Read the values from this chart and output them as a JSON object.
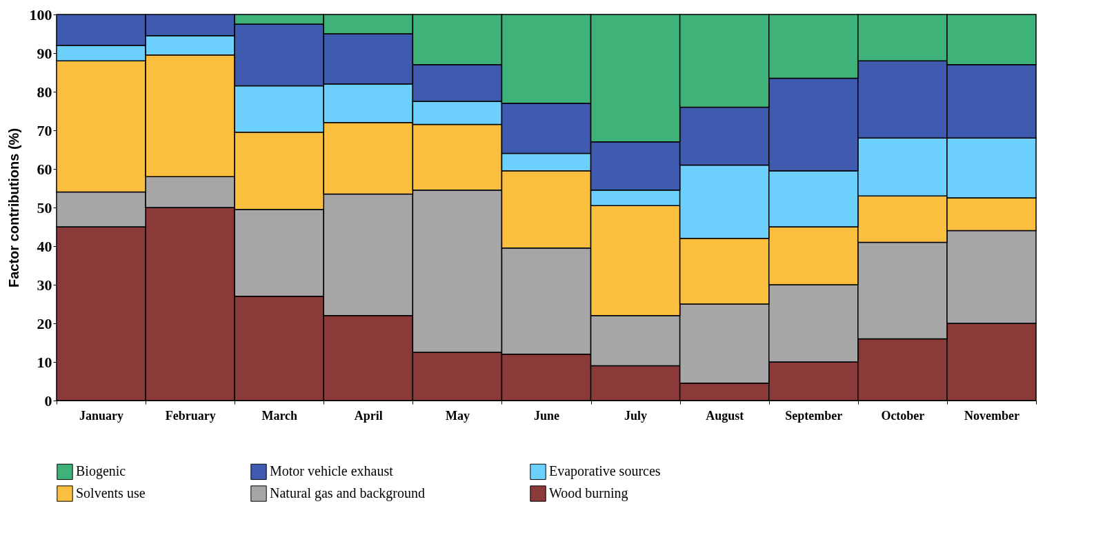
{
  "chart_data": {
    "type": "bar",
    "stacked": true,
    "ylabel": "Factor contributions (%)",
    "categories": [
      "January",
      "February",
      "March",
      "April",
      "May",
      "June",
      "July",
      "August",
      "September",
      "October",
      "November"
    ],
    "series": [
      {
        "name": "Wood burning",
        "color": "#8b3a3a",
        "values": [
          45,
          50,
          27,
          22,
          12.5,
          12,
          9,
          4.5,
          10,
          16,
          20
        ]
      },
      {
        "name": "Natural gas and background",
        "color": "#a6a6a6",
        "values": [
          9,
          8,
          22.5,
          31.5,
          42,
          27.5,
          13,
          20.5,
          20,
          25,
          24
        ]
      },
      {
        "name": "Solvents use",
        "color": "#fbbf3f",
        "values": [
          34,
          31.5,
          20,
          18.5,
          17,
          20,
          28.5,
          17,
          15,
          12,
          8.5
        ]
      },
      {
        "name": "Evaporative sources",
        "color": "#6dcffb",
        "values": [
          4,
          5,
          12,
          10,
          6,
          4.5,
          4,
          19,
          14.5,
          15,
          15.5
        ]
      },
      {
        "name": "Motor vehicle exhaust",
        "color": "#3e5bb0",
        "values": [
          8,
          5.5,
          16,
          13,
          9.5,
          13,
          12.5,
          15,
          24,
          20,
          19
        ]
      },
      {
        "name": "Biogenic",
        "color": "#3fb27a",
        "values": [
          null,
          null,
          2.5,
          5,
          13,
          23,
          33,
          24,
          16.5,
          12,
          13
        ]
      }
    ],
    "ylim": [
      0,
      100
    ],
    "yticks": [
      0,
      10,
      20,
      30,
      40,
      50,
      60,
      70,
      80,
      90,
      100
    ],
    "grid": false,
    "legend": "bottom"
  }
}
